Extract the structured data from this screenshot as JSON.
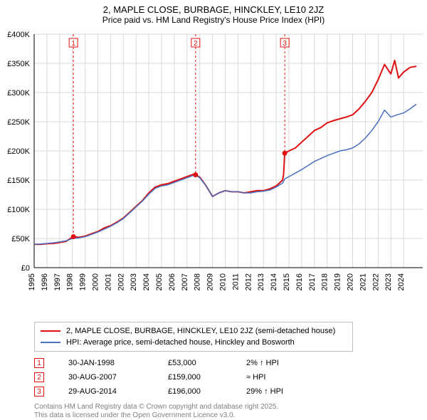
{
  "title_line1": "2, MAPLE CLOSE, BURBAGE, HINCKLEY, LE10 2JZ",
  "title_line2": "Price paid vs. HM Land Registry's House Price Index (HPI)",
  "title_fontsize": 13,
  "chart": {
    "type": "line",
    "background_color": "#ffffff",
    "grid_color": "#d9d9d9",
    "axis_color": "#000000",
    "xlim": [
      1995,
      2025.5
    ],
    "ylim": [
      0,
      400000
    ],
    "ytick_step": 50000,
    "ytick_labels": [
      "£0",
      "£50K",
      "£100K",
      "£150K",
      "£200K",
      "£250K",
      "£300K",
      "£350K",
      "£400K"
    ],
    "xtick_step": 1,
    "xtick_labels": [
      "1995",
      "1996",
      "1997",
      "1998",
      "1999",
      "2000",
      "2001",
      "2002",
      "2003",
      "2004",
      "2005",
      "2006",
      "2007",
      "2008",
      "2009",
      "2010",
      "2011",
      "2012",
      "2013",
      "2014",
      "2015",
      "2016",
      "2017",
      "2018",
      "2019",
      "2020",
      "2021",
      "2022",
      "2023",
      "2024"
    ],
    "label_fontsize": 11,
    "series": [
      {
        "name": "2, MAPLE CLOSE, BURBAGE, HINCKLEY, LE10 2JZ (semi-detached house)",
        "color": "#e01010",
        "line_width": 2,
        "data": [
          [
            1995.0,
            40000
          ],
          [
            1995.5,
            40000
          ],
          [
            1996.0,
            41000
          ],
          [
            1996.5,
            41500
          ],
          [
            1997.0,
            43000
          ],
          [
            1997.5,
            45000
          ],
          [
            1998.0,
            52500
          ],
          [
            1998.08,
            53000
          ],
          [
            1998.5,
            52000
          ],
          [
            1999.0,
            54000
          ],
          [
            1999.5,
            58000
          ],
          [
            2000.0,
            62000
          ],
          [
            2000.5,
            68000
          ],
          [
            2001.0,
            72000
          ],
          [
            2001.5,
            78000
          ],
          [
            2002.0,
            85000
          ],
          [
            2002.5,
            95000
          ],
          [
            2003.0,
            105000
          ],
          [
            2003.5,
            115000
          ],
          [
            2004.0,
            128000
          ],
          [
            2004.5,
            138000
          ],
          [
            2005.0,
            142000
          ],
          [
            2005.5,
            144000
          ],
          [
            2006.0,
            148000
          ],
          [
            2006.5,
            152000
          ],
          [
            2007.0,
            156000
          ],
          [
            2007.5,
            160000
          ],
          [
            2007.67,
            159000
          ],
          [
            2008.0,
            155000
          ],
          [
            2008.5,
            140000
          ],
          [
            2009.0,
            122000
          ],
          [
            2009.5,
            128000
          ],
          [
            2010.0,
            132000
          ],
          [
            2010.5,
            130000
          ],
          [
            2011.0,
            130000
          ],
          [
            2011.5,
            128000
          ],
          [
            2012.0,
            130000
          ],
          [
            2012.5,
            132000
          ],
          [
            2013.0,
            132000
          ],
          [
            2013.5,
            135000
          ],
          [
            2014.0,
            140000
          ],
          [
            2014.5,
            150000
          ],
          [
            2014.58,
            160000
          ],
          [
            2014.67,
            196000
          ],
          [
            2015.0,
            200000
          ],
          [
            2015.5,
            205000
          ],
          [
            2016.0,
            215000
          ],
          [
            2016.5,
            225000
          ],
          [
            2017.0,
            235000
          ],
          [
            2017.5,
            240000
          ],
          [
            2018.0,
            248000
          ],
          [
            2018.5,
            252000
          ],
          [
            2019.0,
            255000
          ],
          [
            2019.5,
            258000
          ],
          [
            2020.0,
            262000
          ],
          [
            2020.5,
            272000
          ],
          [
            2021.0,
            285000
          ],
          [
            2021.5,
            300000
          ],
          [
            2022.0,
            322000
          ],
          [
            2022.5,
            348000
          ],
          [
            2023.0,
            332000
          ],
          [
            2023.3,
            355000
          ],
          [
            2023.6,
            325000
          ],
          [
            2024.0,
            335000
          ],
          [
            2024.5,
            343000
          ],
          [
            2025.0,
            345000
          ]
        ]
      },
      {
        "name": "HPI: Average price, semi-detached house, Hinckley and Bosworth",
        "color": "#4a6fbf",
        "line_width": 1.5,
        "data": [
          [
            1995.0,
            40000
          ],
          [
            1995.5,
            40500
          ],
          [
            1996.0,
            41500
          ],
          [
            1996.5,
            42500
          ],
          [
            1997.0,
            44000
          ],
          [
            1997.5,
            46000
          ],
          [
            1998.0,
            50000
          ],
          [
            1998.5,
            51000
          ],
          [
            1999.0,
            53000
          ],
          [
            1999.5,
            57000
          ],
          [
            2000.0,
            61000
          ],
          [
            2000.5,
            66000
          ],
          [
            2001.0,
            71000
          ],
          [
            2001.5,
            77000
          ],
          [
            2002.0,
            84000
          ],
          [
            2002.5,
            94000
          ],
          [
            2003.0,
            104000
          ],
          [
            2003.5,
            114000
          ],
          [
            2004.0,
            126000
          ],
          [
            2004.5,
            136000
          ],
          [
            2005.0,
            140000
          ],
          [
            2005.5,
            142000
          ],
          [
            2006.0,
            146000
          ],
          [
            2006.5,
            150000
          ],
          [
            2007.0,
            154000
          ],
          [
            2007.5,
            158000
          ],
          [
            2007.67,
            159000
          ],
          [
            2008.0,
            154000
          ],
          [
            2008.5,
            140000
          ],
          [
            2009.0,
            122000
          ],
          [
            2009.5,
            128000
          ],
          [
            2010.0,
            132000
          ],
          [
            2010.5,
            130000
          ],
          [
            2011.0,
            130000
          ],
          [
            2011.5,
            128000
          ],
          [
            2012.0,
            128000
          ],
          [
            2012.5,
            130000
          ],
          [
            2013.0,
            131000
          ],
          [
            2013.5,
            133000
          ],
          [
            2014.0,
            138000
          ],
          [
            2014.5,
            145000
          ],
          [
            2014.67,
            152000
          ],
          [
            2015.0,
            156000
          ],
          [
            2015.5,
            162000
          ],
          [
            2016.0,
            168000
          ],
          [
            2016.5,
            175000
          ],
          [
            2017.0,
            182000
          ],
          [
            2017.5,
            187000
          ],
          [
            2018.0,
            192000
          ],
          [
            2018.5,
            196000
          ],
          [
            2019.0,
            200000
          ],
          [
            2019.5,
            202000
          ],
          [
            2020.0,
            205000
          ],
          [
            2020.5,
            212000
          ],
          [
            2021.0,
            222000
          ],
          [
            2021.5,
            235000
          ],
          [
            2022.0,
            250000
          ],
          [
            2022.5,
            270000
          ],
          [
            2023.0,
            258000
          ],
          [
            2023.5,
            262000
          ],
          [
            2024.0,
            265000
          ],
          [
            2024.5,
            272000
          ],
          [
            2025.0,
            280000
          ]
        ]
      }
    ],
    "sale_markers": [
      {
        "num": "1",
        "x": 1998.08,
        "y": 53000
      },
      {
        "num": "2",
        "x": 2007.67,
        "y": 159000
      },
      {
        "num": "3",
        "x": 2014.67,
        "y": 196000
      }
    ],
    "marker_color": "#e01010",
    "marker_line_color": "#e01010",
    "marker_dash": "3,3",
    "marker_radius": 3.5
  },
  "legend": {
    "border_color": "#bfbfbf",
    "fontsize": 11,
    "items": [
      {
        "color": "#e01010",
        "label": "2, MAPLE CLOSE, BURBAGE, HINCKLEY, LE10 2JZ (semi-detached house)"
      },
      {
        "color": "#4a6fbf",
        "label": "HPI: Average price, semi-detached house, Hinckley and Bosworth"
      }
    ]
  },
  "sales_table": {
    "fontsize": 11,
    "box_border_color": "#e01010",
    "rows": [
      {
        "num": "1",
        "date": "30-JAN-1998",
        "price": "£53,000",
        "hpi": "2% ↑ HPI"
      },
      {
        "num": "2",
        "date": "30-AUG-2007",
        "price": "£159,000",
        "hpi": "≈ HPI"
      },
      {
        "num": "3",
        "date": "29-AUG-2014",
        "price": "£196,000",
        "hpi": "29% ↑ HPI"
      }
    ]
  },
  "attribution": {
    "line1": "Contains HM Land Registry data © Crown copyright and database right 2025.",
    "line2": "This data is licensed under the Open Government Licence v3.0.",
    "color": "#808080",
    "fontsize": 10
  }
}
